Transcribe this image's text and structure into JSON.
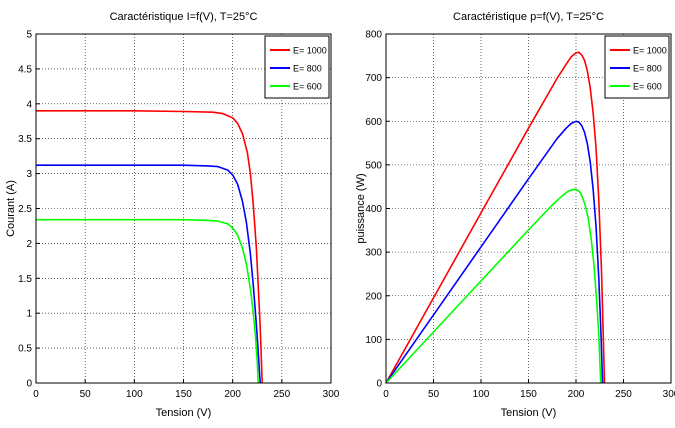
{
  "chart_data": [
    {
      "type": "line",
      "title": "Caractéristique I=f(V), T=25°C",
      "xlabel": "Tension (V)",
      "ylabel": "Courant (A)",
      "xlim": [
        0,
        300
      ],
      "ylim": [
        0,
        5
      ],
      "xticks": [
        0,
        50,
        100,
        150,
        200,
        250,
        300
      ],
      "yticks": [
        0,
        0.5,
        1,
        1.5,
        2,
        2.5,
        3,
        3.5,
        4,
        4.5,
        5
      ],
      "xtick_labels": [
        "0",
        "50",
        "100",
        "150",
        "200",
        "250",
        "300"
      ],
      "ytick_labels": [
        "0",
        "0.5",
        "1",
        "1.5",
        "2",
        "2.5",
        "3",
        "3.5",
        "4",
        "4.5",
        "5"
      ],
      "grid": true,
      "legend_position": "top-right",
      "series": [
        {
          "name": "E= 1000",
          "color": "#ff0000",
          "x": [
            0,
            100,
            150,
            180,
            190,
            200,
            205,
            210,
            215,
            218,
            221,
            224,
            226,
            228,
            229,
            230
          ],
          "y": [
            3.9,
            3.9,
            3.89,
            3.88,
            3.86,
            3.8,
            3.72,
            3.57,
            3.3,
            3.0,
            2.55,
            1.95,
            1.4,
            0.8,
            0.4,
            0.0
          ]
        },
        {
          "name": "E= 800",
          "color": "#0000ff",
          "x": [
            0,
            100,
            150,
            175,
            185,
            195,
            200,
            205,
            210,
            214,
            218,
            221,
            224,
            226,
            228
          ],
          "y": [
            3.12,
            3.12,
            3.12,
            3.11,
            3.1,
            3.05,
            2.98,
            2.85,
            2.6,
            2.3,
            1.85,
            1.4,
            0.85,
            0.45,
            0.0
          ]
        },
        {
          "name": "E= 600",
          "color": "#00ff00",
          "x": [
            0,
            100,
            150,
            175,
            185,
            195,
            200,
            205,
            210,
            214,
            218,
            221,
            223,
            225,
            226
          ],
          "y": [
            2.34,
            2.34,
            2.34,
            2.33,
            2.32,
            2.28,
            2.22,
            2.12,
            1.93,
            1.7,
            1.35,
            1.0,
            0.7,
            0.3,
            0.0
          ]
        }
      ]
    },
    {
      "type": "line",
      "title": "Caractéristique p=f(V), T=25°C",
      "xlabel": "Tension (V)",
      "ylabel": "puissance (W)",
      "xlim": [
        0,
        300
      ],
      "ylim": [
        0,
        800
      ],
      "xticks": [
        0,
        50,
        100,
        150,
        200,
        250,
        300
      ],
      "yticks": [
        0,
        100,
        200,
        300,
        400,
        500,
        600,
        700,
        800
      ],
      "xtick_labels": [
        "0",
        "50",
        "100",
        "150",
        "200",
        "250",
        "300"
      ],
      "ytick_labels": [
        "0",
        "100",
        "200",
        "300",
        "400",
        "500",
        "600",
        "700",
        "800"
      ],
      "grid": true,
      "legend_position": "top-right",
      "series": [
        {
          "name": "E= 1000",
          "color": "#ff0000",
          "x": [
            0,
            50,
            100,
            150,
            180,
            190,
            195,
            200,
            203,
            206,
            209,
            212,
            215,
            218,
            221,
            224,
            227,
            230
          ],
          "y": [
            0,
            195,
            390,
            584,
            698,
            732,
            748,
            757,
            758,
            752,
            740,
            715,
            675,
            620,
            540,
            420,
            250,
            0
          ]
        },
        {
          "name": "E= 800",
          "color": "#0000ff",
          "x": [
            0,
            50,
            100,
            150,
            180,
            190,
            195,
            200,
            203,
            206,
            209,
            212,
            215,
            218,
            221,
            224,
            226,
            228
          ],
          "y": [
            0,
            156,
            312,
            468,
            560,
            585,
            595,
            600,
            598,
            590,
            575,
            548,
            505,
            445,
            360,
            240,
            130,
            0
          ]
        },
        {
          "name": "E= 600",
          "color": "#00ff00",
          "x": [
            0,
            50,
            100,
            150,
            175,
            185,
            192,
            198,
            201,
            204,
            207,
            210,
            213,
            216,
            219,
            222,
            224,
            226
          ],
          "y": [
            0,
            117,
            234,
            351,
            408,
            428,
            440,
            444,
            443,
            438,
            425,
            405,
            375,
            330,
            270,
            180,
            110,
            0
          ]
        }
      ]
    }
  ]
}
